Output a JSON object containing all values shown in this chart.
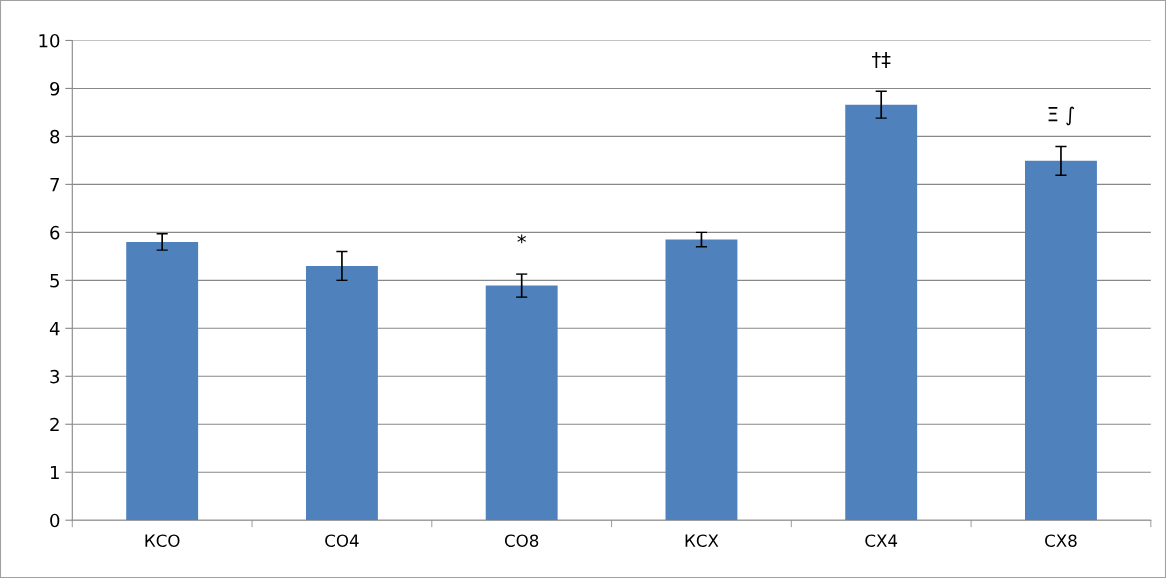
{
  "chart_data": {
    "type": "bar",
    "categories": [
      "КСО",
      "СО4",
      "СО8",
      "КСХ",
      "СХ4",
      "СХ8"
    ],
    "values": [
      5.8,
      5.3,
      4.89,
      5.85,
      8.66,
      7.49
    ],
    "errors": [
      0.17,
      0.3,
      0.24,
      0.15,
      0.28,
      0.3
    ],
    "color": "#4f81bd",
    "ylim": [
      0,
      10
    ],
    "yticks": [
      0,
      1,
      2,
      3,
      4,
      5,
      6,
      7,
      8,
      9,
      10
    ],
    "grid": "y",
    "annotations": [
      {
        "text": "*",
        "x": "СО8",
        "y": 4.89
      },
      {
        "text": "†‡",
        "x": "СХ4",
        "y": 8.66
      },
      {
        "text": "Ξ ∫",
        "x": "СХ8",
        "y": 7.49
      }
    ]
  }
}
